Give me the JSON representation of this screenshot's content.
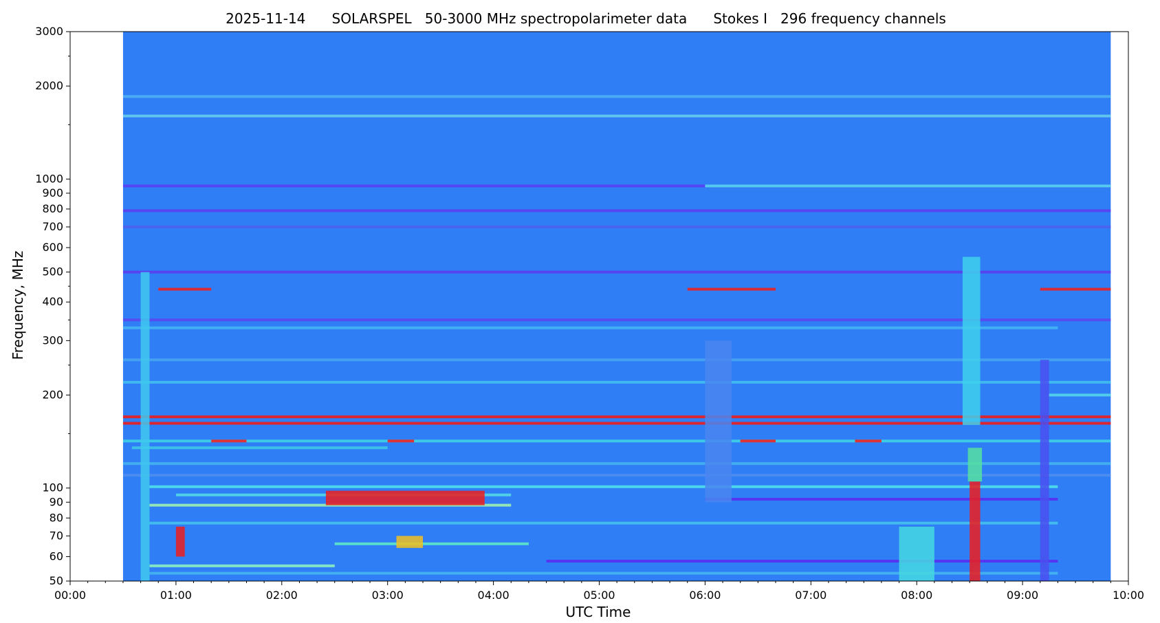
{
  "chart_data": {
    "type": "heatmap",
    "title": "2025-11-14      SOLARSPEL   50-3000 MHz spectropolarimeter data      Stokes I   296 frequency channels",
    "xlabel": "UTC Time",
    "ylabel": "Frequency, MHz",
    "x_scale": "time",
    "y_scale": "log",
    "xlim": [
      "00:00",
      "10:00"
    ],
    "ylim": [
      50,
      3000
    ],
    "data_extent": {
      "x_start": "00:30",
      "x_end": "09:50"
    },
    "x_ticks": [
      "00:00",
      "01:00",
      "02:00",
      "03:00",
      "04:00",
      "05:00",
      "06:00",
      "07:00",
      "08:00",
      "09:00",
      "10:00"
    ],
    "y_ticks": [
      50,
      60,
      70,
      80,
      90,
      100,
      200,
      300,
      400,
      500,
      600,
      700,
      800,
      900,
      1000,
      2000,
      3000
    ],
    "y_tick_labels": [
      "50",
      "60",
      "70",
      "80",
      "90",
      "100",
      "200",
      "300",
      "400",
      "500",
      "600",
      "700",
      "800",
      "900",
      "1000",
      "2000",
      "3000"
    ],
    "colormap": "jet",
    "background_color": "#2f7ef5",
    "grid": false,
    "features": [
      {
        "kind": "hband",
        "freq": 1600,
        "t0": "00:30",
        "t1": "09:50",
        "color": "#66ccee"
      },
      {
        "kind": "hband",
        "freq": 1850,
        "t0": "00:30",
        "t1": "09:50",
        "color": "#4fb0f2"
      },
      {
        "kind": "hband",
        "freq": 950,
        "t0": "00:30",
        "t1": "09:50",
        "color": "#5b3ff5"
      },
      {
        "kind": "hband",
        "freq": 950,
        "t0": "06:00",
        "t1": "09:50",
        "color": "#55d8ee"
      },
      {
        "kind": "hband",
        "freq": 790,
        "t0": "00:30",
        "t1": "09:50",
        "color": "#5c40f0"
      },
      {
        "kind": "hband",
        "freq": 700,
        "t0": "00:30",
        "t1": "09:50",
        "color": "#4d63ef"
      },
      {
        "kind": "hband",
        "freq": 500,
        "t0": "00:30",
        "t1": "09:50",
        "color": "#5a3eec"
      },
      {
        "kind": "hband",
        "freq": 440,
        "t0": "00:50",
        "t1": "01:20",
        "color": "#ee2222"
      },
      {
        "kind": "hband",
        "freq": 440,
        "t0": "05:50",
        "t1": "06:40",
        "color": "#ee2222"
      },
      {
        "kind": "hband",
        "freq": 440,
        "t0": "09:10",
        "t1": "09:50",
        "color": "#ee2222"
      },
      {
        "kind": "hband",
        "freq": 350,
        "t0": "00:30",
        "t1": "09:50",
        "color": "#5a48ee"
      },
      {
        "kind": "hband",
        "freq": 330,
        "t0": "00:30",
        "t1": "09:20",
        "color": "#46b4f5"
      },
      {
        "kind": "hband",
        "freq": 260,
        "t0": "00:30",
        "t1": "09:50",
        "color": "#49a4f2"
      },
      {
        "kind": "hband",
        "freq": 220,
        "t0": "00:30",
        "t1": "09:50",
        "color": "#43bff0"
      },
      {
        "kind": "hband",
        "freq": 200,
        "t0": "09:15",
        "t1": "09:50",
        "color": "#55d6ea"
      },
      {
        "kind": "hband",
        "freq": 170,
        "t0": "00:30",
        "t1": "09:50",
        "color": "#ee1c1c"
      },
      {
        "kind": "hband",
        "freq": 162,
        "t0": "00:30",
        "t1": "09:50",
        "color": "#ee1c1c"
      },
      {
        "kind": "hband",
        "freq": 142,
        "t0": "00:30",
        "t1": "09:50",
        "color": "#3fd3e6"
      },
      {
        "kind": "hband",
        "freq": 142,
        "t0": "01:20",
        "t1": "01:40",
        "color": "#ee2222"
      },
      {
        "kind": "hband",
        "freq": 142,
        "t0": "03:00",
        "t1": "03:15",
        "color": "#ee2222"
      },
      {
        "kind": "hband",
        "freq": 142,
        "t0": "06:20",
        "t1": "06:40",
        "color": "#ee2222"
      },
      {
        "kind": "hband",
        "freq": 142,
        "t0": "07:25",
        "t1": "07:40",
        "color": "#ee2222"
      },
      {
        "kind": "hband",
        "freq": 135,
        "t0": "00:35",
        "t1": "03:00",
        "color": "#3fc6e8"
      },
      {
        "kind": "hband",
        "freq": 120,
        "t0": "00:30",
        "t1": "09:50",
        "color": "#45b2f0"
      },
      {
        "kind": "hband",
        "freq": 110,
        "t0": "00:30",
        "t1": "09:50",
        "color": "#4f8ef0"
      },
      {
        "kind": "hband",
        "freq": 101,
        "t0": "00:45",
        "t1": "09:20",
        "color": "#4fe0ea"
      },
      {
        "kind": "hband",
        "freq": 95,
        "t0": "01:00",
        "t1": "04:10",
        "color": "#54d8e4"
      },
      {
        "kind": "hband",
        "freq": 92,
        "t0": "06:00",
        "t1": "09:20",
        "color": "#5a2ff0"
      },
      {
        "kind": "hband",
        "freq": 88,
        "t0": "00:45",
        "t1": "04:10",
        "color": "#9ef0b0"
      },
      {
        "kind": "hband",
        "freq": 77,
        "t0": "00:45",
        "t1": "09:20",
        "color": "#46c2ee"
      },
      {
        "kind": "hband",
        "freq": 66,
        "t0": "02:30",
        "t1": "04:20",
        "color": "#5ee8c8"
      },
      {
        "kind": "hband",
        "freq": 58,
        "t0": "04:30",
        "t1": "09:20",
        "color": "#5a2ff0"
      },
      {
        "kind": "hband",
        "freq": 56,
        "t0": "00:45",
        "t1": "02:30",
        "color": "#8af0c0"
      },
      {
        "kind": "hband",
        "freq": 53,
        "t0": "00:45",
        "t1": "09:20",
        "color": "#45b6ef"
      },
      {
        "kind": "block",
        "f0": 88,
        "f1": 98,
        "t0": "02:25",
        "t1": "03:55",
        "color": "#ee1c1c"
      },
      {
        "kind": "block",
        "f0": 64,
        "f1": 70,
        "t0": "03:05",
        "t1": "03:20",
        "color": "#f2c020"
      },
      {
        "kind": "block",
        "f0": 60,
        "f1": 75,
        "t0": "01:00",
        "t1": "01:05",
        "color": "#ee1c1c"
      },
      {
        "kind": "block",
        "f0": 50,
        "f1": 105,
        "t0": "08:30",
        "t1": "08:36",
        "color": "#ee1c1c"
      },
      {
        "kind": "block",
        "f0": 105,
        "f1": 135,
        "t0": "08:29",
        "t1": "08:37",
        "color": "#55e0a0"
      },
      {
        "kind": "block",
        "f0": 160,
        "f1": 560,
        "t0": "08:26",
        "t1": "08:36",
        "color": "#3fd0ec"
      },
      {
        "kind": "block",
        "f0": 50,
        "f1": 500,
        "t0": "00:40",
        "t1": "00:45",
        "color": "#3fc8ee"
      },
      {
        "kind": "block",
        "f0": 90,
        "f1": 300,
        "t0": "06:00",
        "t1": "06:15",
        "color": "#4a86f0"
      },
      {
        "kind": "block",
        "f0": 50,
        "f1": 75,
        "t0": "07:50",
        "t1": "08:10",
        "color": "#45d8e0"
      },
      {
        "kind": "block",
        "f0": 50,
        "f1": 260,
        "t0": "09:10",
        "t1": "09:15",
        "color": "#4a4ff0"
      }
    ]
  }
}
